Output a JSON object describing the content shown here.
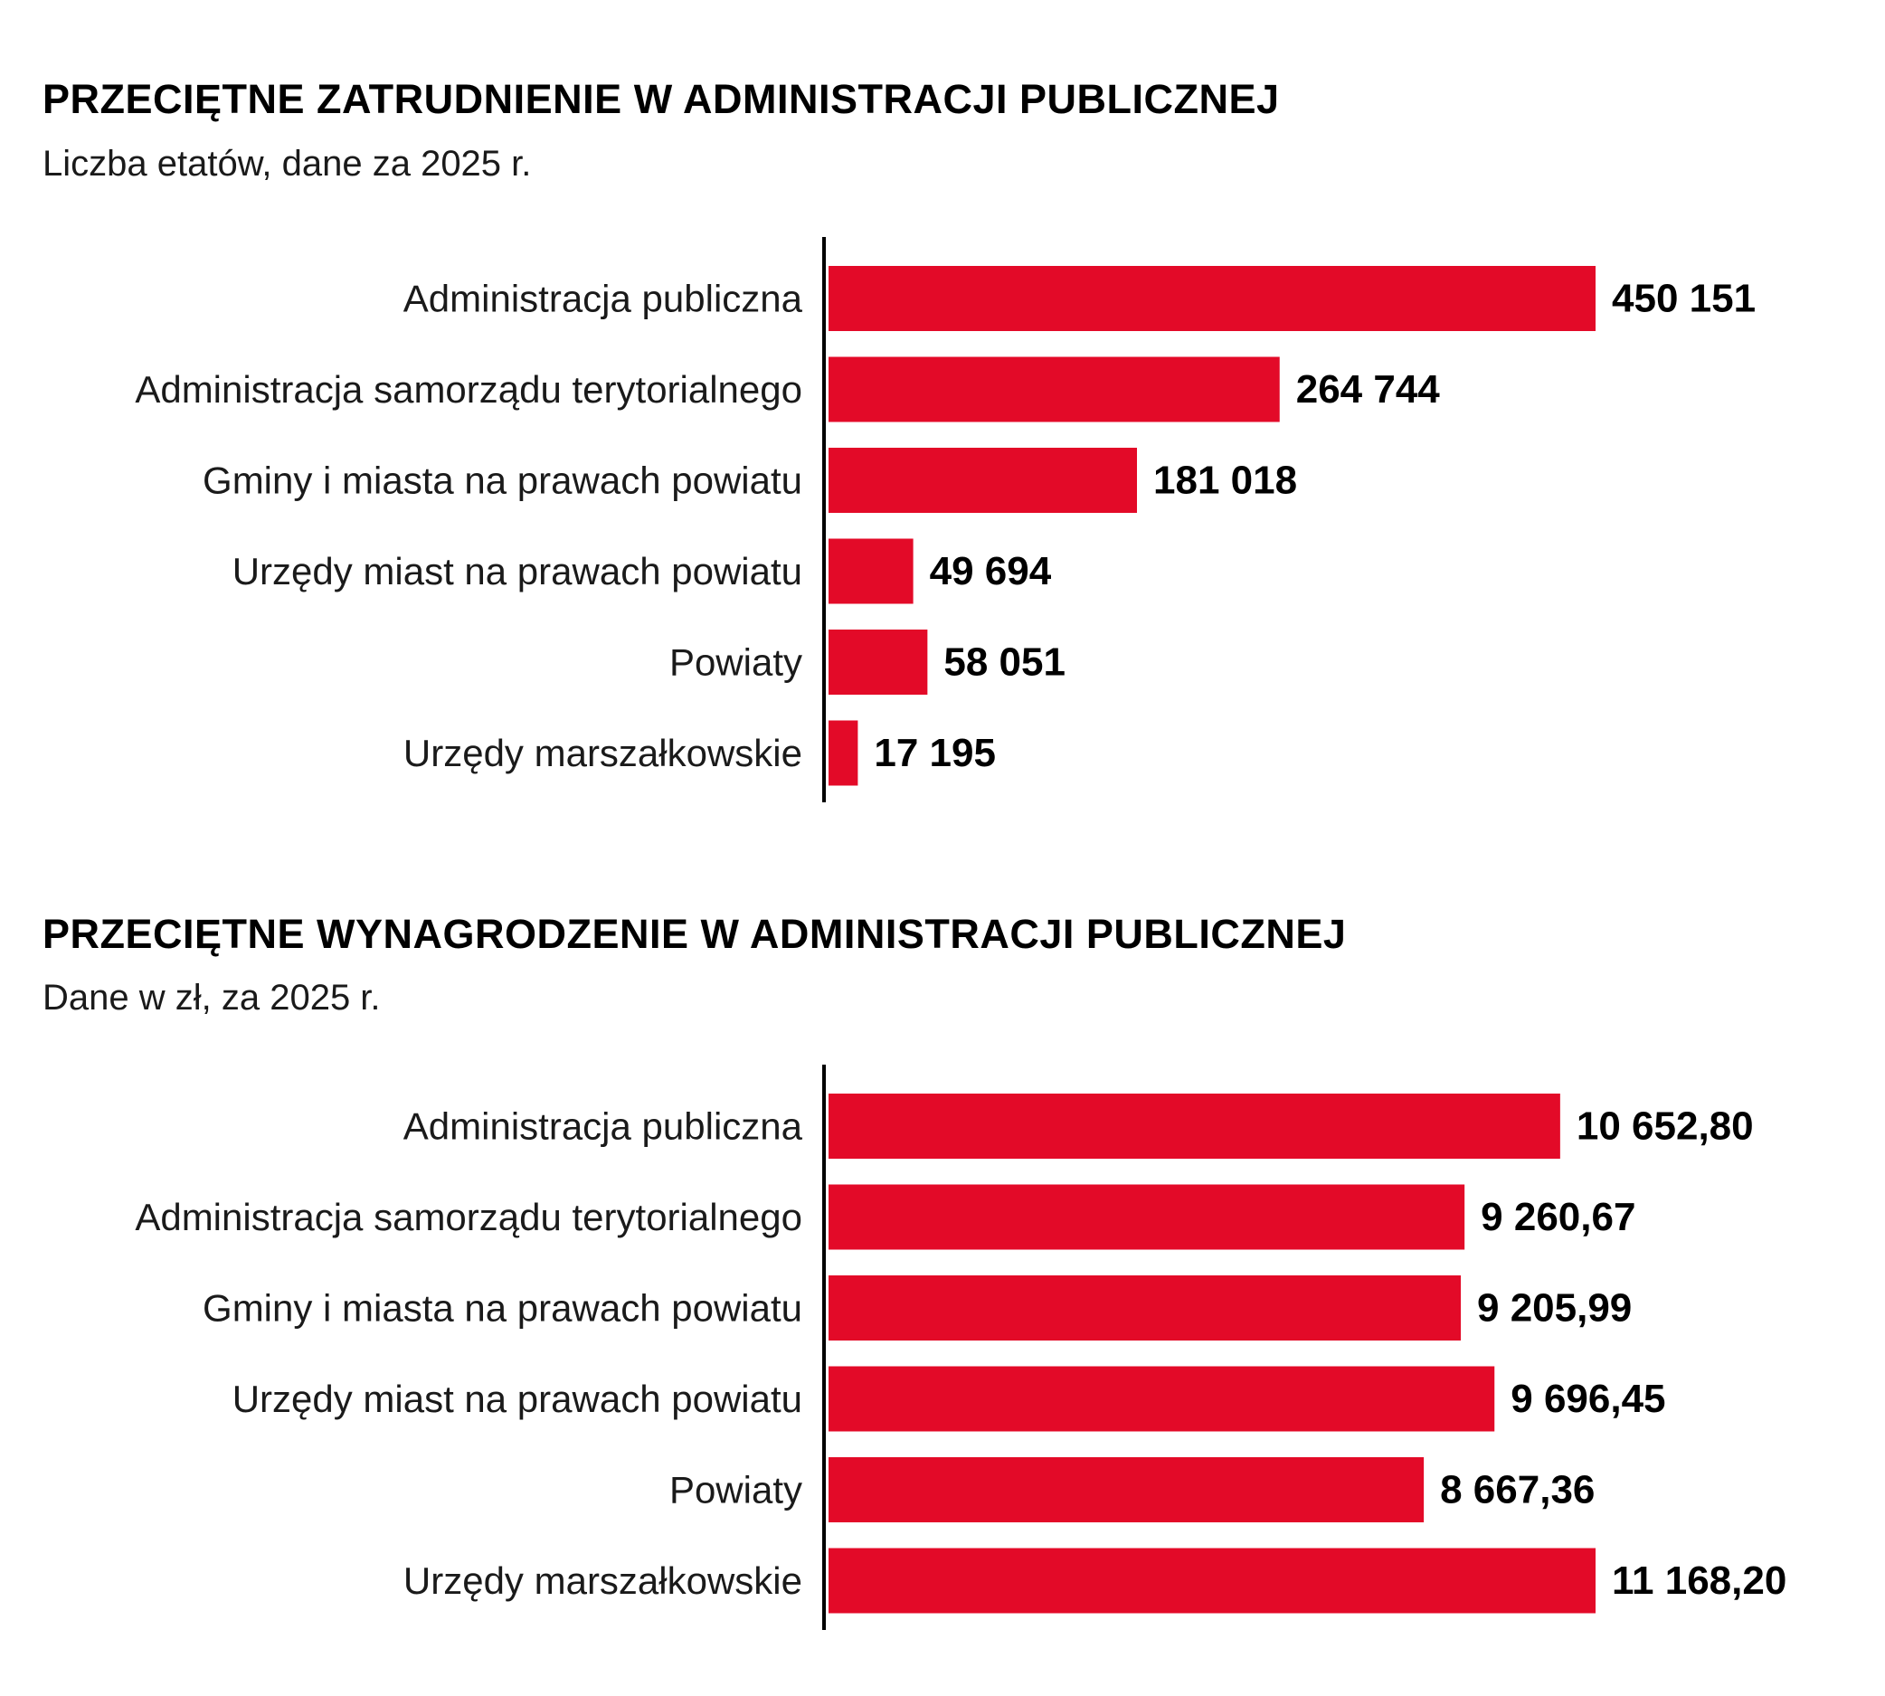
{
  "chart_data": [
    {
      "type": "bar",
      "orientation": "horizontal",
      "title": "PRZECIĘTNE ZATRUDNIENIE W ADMINISTRACJI PUBLICZNEJ",
      "subtitle": "Liczba etatów, dane za 2025 r.",
      "categories": [
        "Administracja publiczna",
        "Administracja samorządu terytorialnego",
        "Gminy i miasta na prawach powiatu",
        "Urzędy miast na prawach powiatu",
        "Powiaty",
        "Urzędy marszałkowskie"
      ],
      "values": [
        450151,
        264744,
        181018,
        49694,
        58051,
        17195
      ],
      "value_labels": [
        "450 151",
        "264 744",
        "181 018",
        "49 694",
        "58 051",
        "17 195"
      ],
      "xlim": [
        0,
        450151
      ],
      "grid": false,
      "bar_color": "#e30a28"
    },
    {
      "type": "bar",
      "orientation": "horizontal",
      "title": "PRZECIĘTNE WYNAGRODZENIE W ADMINISTRACJI PUBLICZNEJ",
      "subtitle": "Dane w zł, za 2025 r.",
      "categories": [
        "Administracja publiczna",
        "Administracja samorządu terytorialnego",
        "Gminy i miasta na prawach powiatu",
        "Urzędy miast na prawach powiatu",
        "Powiaty",
        "Urzędy marszałkowskie"
      ],
      "values": [
        10652.8,
        9260.67,
        9205.99,
        9696.45,
        8667.36,
        11168.2
      ],
      "value_labels": [
        "10 652,80",
        "9 260,67",
        "9 205,99",
        "9 696,45",
        "8 667,36",
        "11 168,20"
      ],
      "xlim": [
        0,
        11168.2
      ],
      "grid": false,
      "bar_color": "#e30a28"
    }
  ]
}
